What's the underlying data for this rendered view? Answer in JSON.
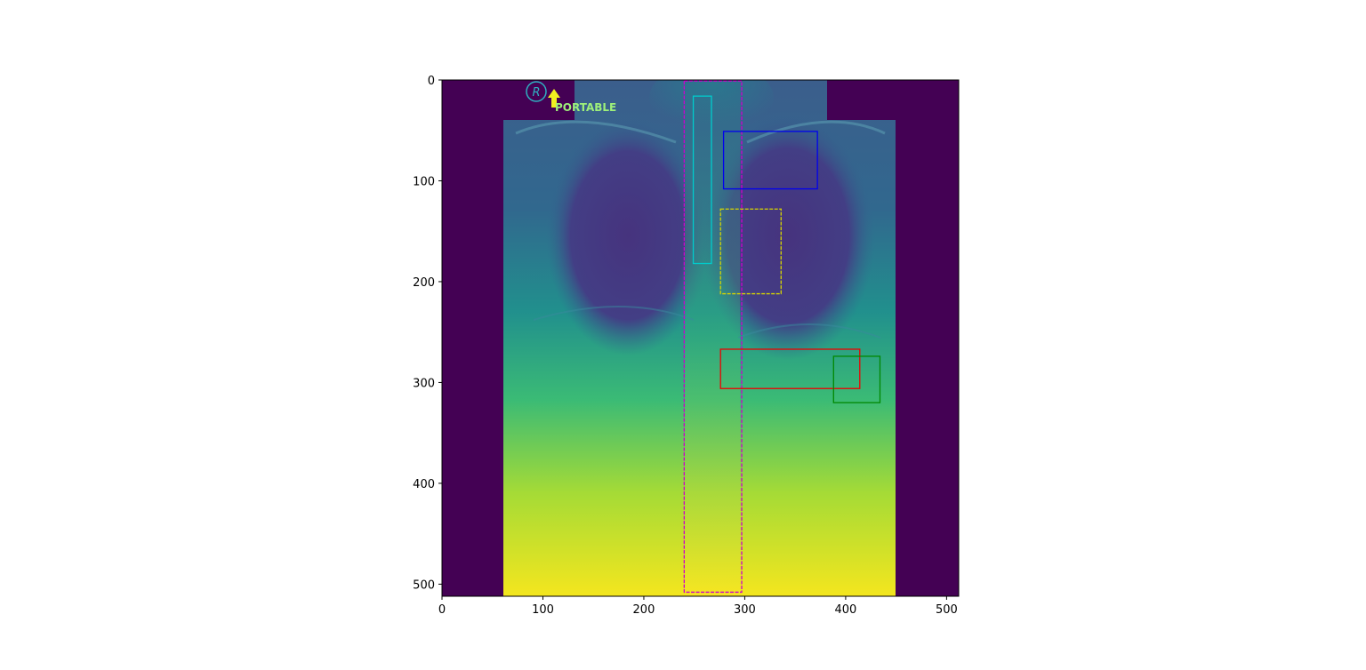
{
  "image": {
    "width": 512,
    "height": 512,
    "colormap": "viridis",
    "overlay_marker": "R",
    "overlay_label": "PORTABLE"
  },
  "axes": {
    "x_ticks": [
      0,
      100,
      200,
      300,
      400,
      500
    ],
    "y_ticks": [
      0,
      100,
      200,
      300,
      400,
      500
    ],
    "x_range": [
      0,
      512
    ],
    "y_range": [
      512,
      0
    ]
  },
  "boxes": [
    {
      "x0": 240,
      "y0": 1,
      "x1": 297,
      "y1": 508,
      "color": "#cc00cc",
      "style": "dashed"
    },
    {
      "x0": 249,
      "y0": 16,
      "x1": 267,
      "y1": 182,
      "color": "#00cccc",
      "style": "solid"
    },
    {
      "x0": 279,
      "y0": 51,
      "x1": 372,
      "y1": 108,
      "color": "#0000ee",
      "style": "solid"
    },
    {
      "x0": 276,
      "y0": 128,
      "x1": 336,
      "y1": 212,
      "color": "#d6d600",
      "style": "dashed"
    },
    {
      "x0": 276,
      "y0": 267,
      "x1": 414,
      "y1": 306,
      "color": "#ee0000",
      "style": "solid"
    },
    {
      "x0": 388,
      "y0": 274,
      "x1": 434,
      "y1": 320,
      "color": "#008800",
      "style": "solid"
    }
  ]
}
